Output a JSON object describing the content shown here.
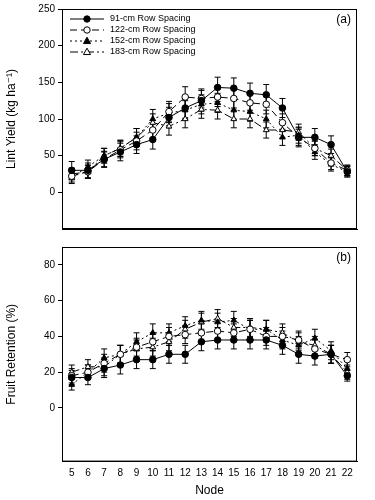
{
  "chart_data": [
    {
      "type": "line",
      "title": "(a)",
      "y_label": "Lint Yield (kg ha⁻¹)",
      "legend": "upper left",
      "tick_labels": "y",
      "x": [
        5,
        6,
        7,
        8,
        9,
        10,
        11,
        12,
        13,
        14,
        15,
        16,
        17,
        18,
        19,
        20,
        21,
        22
      ],
      "xlim": [
        4.4,
        22.6
      ],
      "xticks": [
        5,
        6,
        7,
        8,
        9,
        10,
        11,
        12,
        13,
        14,
        15,
        16,
        17,
        18,
        19,
        20,
        21,
        22
      ],
      "ylim": [
        -50,
        250
      ],
      "yticks": [
        0,
        50,
        100,
        150,
        200,
        250
      ],
      "series": [
        {
          "name": "91-cm Row Spacing",
          "color": "#000000",
          "marker": "filled_circle",
          "line_style": "solid",
          "values": [
            30,
            30,
            45,
            55,
            65,
            72,
            102,
            115,
            125,
            143,
            142,
            135,
            133,
            115,
            75,
            75,
            65,
            28
          ],
          "errors": [
            12,
            10,
            11,
            12,
            12,
            13,
            14,
            14,
            14,
            14,
            14,
            14,
            14,
            13,
            13,
            12,
            12,
            7
          ]
        },
        {
          "name": "122-cm Row Spacing",
          "color": "#000000",
          "marker": "open_circle",
          "line_style": "dashed",
          "values": [
            22,
            28,
            45,
            58,
            70,
            85,
            110,
            130,
            128,
            130,
            128,
            122,
            120,
            95,
            75,
            60,
            40,
            30
          ],
          "errors": [
            8,
            9,
            10,
            11,
            12,
            13,
            14,
            14,
            13,
            13,
            13,
            13,
            13,
            12,
            11,
            10,
            9,
            7
          ]
        },
        {
          "name": "152-cm Row Spacing",
          "color": "#000000",
          "marker": "filled_triangle",
          "line_style": "dotted",
          "values": [
            20,
            35,
            50,
            60,
            75,
            100,
            108,
            112,
            120,
            122,
            112,
            110,
            100,
            75,
            78,
            55,
            38,
            28
          ],
          "errors": [
            8,
            9,
            10,
            11,
            12,
            13,
            13,
            13,
            13,
            13,
            13,
            13,
            12,
            11,
            11,
            10,
            9,
            7
          ]
        },
        {
          "name": "183-cm Row Spacing",
          "color": "#000000",
          "marker": "open_triangle",
          "line_style": "dashdot",
          "values": [
            25,
            28,
            50,
            60,
            75,
            95,
            90,
            100,
            113,
            112,
            100,
            100,
            85,
            85,
            82,
            60,
            50,
            30
          ],
          "errors": [
            8,
            9,
            10,
            11,
            12,
            12,
            12,
            12,
            12,
            12,
            12,
            12,
            11,
            11,
            11,
            10,
            9,
            7
          ]
        }
      ]
    },
    {
      "type": "line",
      "title": "(b)",
      "x_label": "Node",
      "y_label": "Fruit Retention (%)",
      "x": [
        5,
        6,
        7,
        8,
        9,
        10,
        11,
        12,
        13,
        14,
        15,
        16,
        17,
        18,
        19,
        20,
        21,
        22
      ],
      "xlim": [
        4.4,
        22.6
      ],
      "xticks": [
        5,
        6,
        7,
        8,
        9,
        10,
        11,
        12,
        13,
        14,
        15,
        16,
        17,
        18,
        19,
        20,
        21,
        22
      ],
      "ylim": [
        -30,
        90
      ],
      "yticks": [
        0,
        20,
        40,
        60,
        80
      ],
      "series": [
        {
          "name": "91-cm Row Spacing",
          "color": "#000000",
          "marker": "filled_circle",
          "line_style": "solid",
          "values": [
            17,
            17,
            22,
            24,
            27,
            27,
            30,
            30,
            37,
            38,
            38,
            38,
            38,
            35,
            30,
            29,
            30,
            18
          ],
          "errors": [
            4,
            4,
            5,
            5,
            5,
            5,
            5,
            5,
            5,
            5,
            5,
            5,
            5,
            5,
            5,
            5,
            5,
            3
          ]
        },
        {
          "name": "122-cm Row Spacing",
          "color": "#000000",
          "marker": "open_circle",
          "line_style": "dashed",
          "values": [
            18,
            20,
            25,
            30,
            34,
            37,
            40,
            41,
            42,
            43,
            42,
            44,
            40,
            40,
            38,
            33,
            30,
            27
          ],
          "errors": [
            4,
            4,
            5,
            5,
            5,
            5,
            5,
            5,
            5,
            5,
            5,
            5,
            5,
            5,
            5,
            5,
            5,
            4
          ]
        },
        {
          "name": "152-cm Row Spacing",
          "color": "#000000",
          "marker": "filled_triangle",
          "line_style": "dotted",
          "values": [
            13,
            20,
            28,
            30,
            37,
            42,
            42,
            46,
            49,
            48,
            49,
            44,
            44,
            38,
            35,
            39,
            32,
            22
          ],
          "errors": [
            3,
            4,
            5,
            5,
            5,
            5,
            5,
            5,
            5,
            5,
            5,
            5,
            5,
            5,
            5,
            5,
            5,
            4
          ]
        },
        {
          "name": "183-cm Row Spacing",
          "color": "#000000",
          "marker": "open_triangle",
          "line_style": "dashdot",
          "values": [
            20,
            23,
            23,
            30,
            33,
            34,
            37,
            44,
            48,
            50,
            45,
            45,
            44,
            42,
            37,
            35,
            30,
            20
          ],
          "errors": [
            4,
            4,
            5,
            5,
            5,
            5,
            5,
            5,
            5,
            5,
            5,
            5,
            5,
            5,
            5,
            5,
            5,
            4
          ]
        }
      ]
    }
  ]
}
